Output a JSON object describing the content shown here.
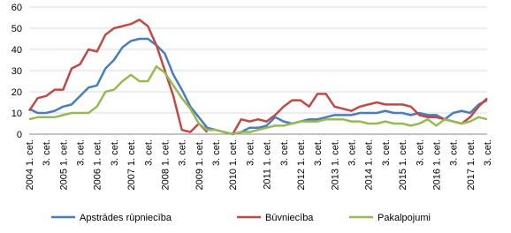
{
  "chart_data": {
    "type": "line",
    "categories": [
      "2004 1. cet.",
      null,
      "3. cet.",
      null,
      "2005 1. cet.",
      null,
      "3. cet.",
      null,
      "2006 1. cet.",
      null,
      "3. cet.",
      null,
      "2007 1. cet.",
      null,
      "3. cet.",
      null,
      "2008 1. cet.",
      null,
      "3. cet.",
      null,
      "2009 1. cet.",
      null,
      "3. cet.",
      null,
      "2010 1. cet.",
      null,
      "3. cet.",
      null,
      "2011 1. cet.",
      null,
      "3. cet.",
      null,
      "2012 1. cet.",
      null,
      "3. cet.",
      null,
      "2013 1. cet.",
      null,
      "3. cet.",
      null,
      "2014 1. cet.",
      null,
      "3. cet.",
      null,
      "2015 1. cet.",
      null,
      "3. cet.",
      null,
      "2016 1. cet.",
      null,
      "3. cet.",
      null,
      "2017 1. cet.",
      null,
      "3. cet."
    ],
    "series": [
      {
        "name": "Apstrādes rūpniecība",
        "color": "#4a7ebb",
        "values": [
          12,
          10,
          10,
          11,
          13,
          14,
          18,
          22,
          23,
          31,
          35,
          41,
          44,
          45,
          45,
          42,
          38,
          28,
          21,
          13,
          8,
          3,
          2,
          1,
          0,
          1,
          3,
          3,
          4,
          8,
          6,
          5,
          6,
          7,
          7,
          8,
          9,
          9,
          9,
          10,
          10,
          10,
          11,
          10,
          10,
          9,
          10,
          9,
          9,
          7,
          10,
          11,
          10,
          14,
          16
        ]
      },
      {
        "name": "Būvniecība",
        "color": "#be4b48",
        "values": [
          11,
          17,
          18,
          21,
          21,
          31,
          33,
          40,
          39,
          47,
          50,
          51,
          52,
          54,
          51,
          42,
          30,
          18,
          2,
          1,
          5,
          1,
          null,
          null,
          0,
          7,
          6,
          7,
          6,
          9,
          13,
          16,
          16,
          13,
          19,
          19,
          13,
          12,
          11,
          13,
          14,
          15,
          14,
          14,
          14,
          13,
          9,
          8,
          8,
          7,
          6,
          5,
          8,
          13,
          17
        ]
      },
      {
        "name": "Pakalpojumi",
        "color": "#98b954",
        "values": [
          7,
          8,
          8,
          8,
          9,
          10,
          10,
          10,
          13,
          20,
          21,
          25,
          28,
          25,
          25,
          32,
          29,
          23,
          17,
          12,
          5,
          2,
          2,
          1,
          0,
          1,
          1,
          2,
          3,
          4,
          4,
          5,
          6,
          6,
          6,
          7,
          7,
          7,
          6,
          6,
          5,
          5,
          6,
          5,
          5,
          4,
          5,
          7,
          4,
          7,
          6,
          5,
          6,
          8,
          7
        ]
      }
    ],
    "ylim": [
      0,
      60
    ],
    "yticks": [
      0,
      10,
      20,
      30,
      40,
      50,
      60
    ],
    "grid": true,
    "legend": "bottom"
  }
}
